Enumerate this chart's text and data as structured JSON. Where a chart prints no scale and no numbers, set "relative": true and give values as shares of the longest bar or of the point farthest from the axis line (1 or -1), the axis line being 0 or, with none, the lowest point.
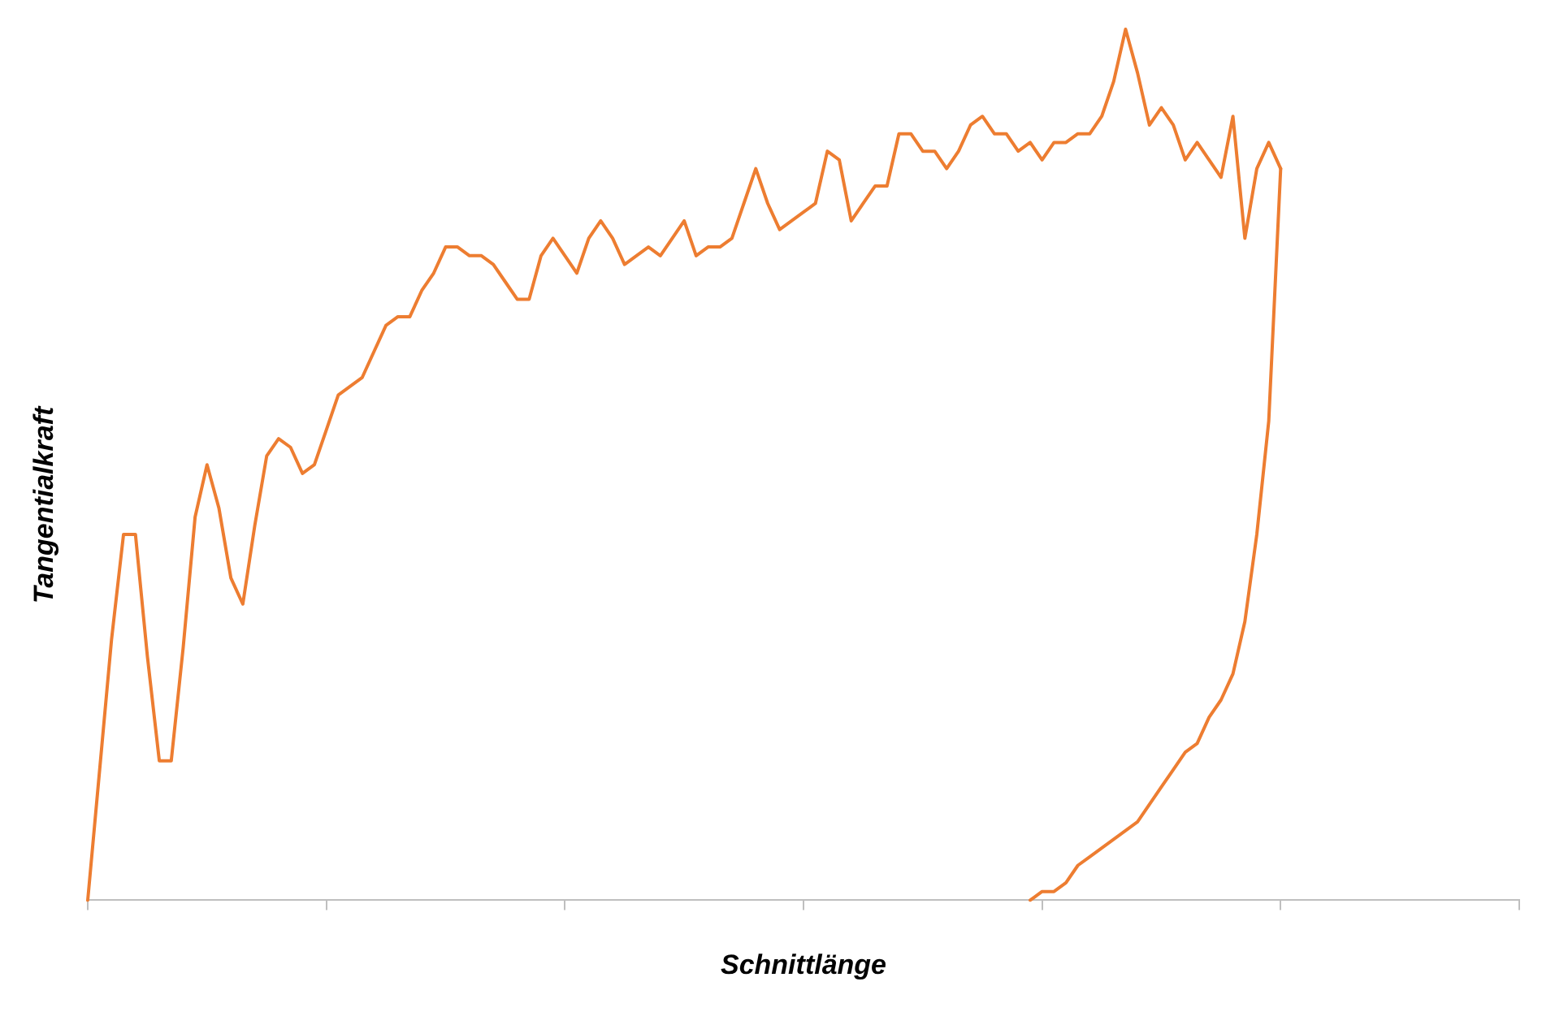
{
  "chart_data": {
    "type": "line",
    "xlabel": "Schnittlänge",
    "ylabel": "Tangentialkraft",
    "relative": true,
    "grid": false,
    "legend": false,
    "marker": "none",
    "line_style": "solid",
    "categories": [
      null,
      null,
      null,
      null,
      null,
      null,
      null,
      null,
      null,
      null,
      null,
      null,
      null,
      null,
      null,
      null,
      null,
      null,
      null,
      null,
      null,
      null,
      null,
      null,
      null,
      null,
      null,
      null,
      null,
      null,
      null,
      null,
      null,
      null,
      null,
      null,
      null,
      null,
      null,
      null,
      null,
      null,
      null,
      null,
      null,
      null,
      null,
      null,
      null,
      null,
      null,
      null,
      null,
      null,
      null,
      null,
      null,
      null,
      null,
      null,
      null,
      null,
      null,
      null,
      null,
      null,
      null,
      null,
      null,
      null,
      null,
      null,
      null,
      null,
      null,
      null,
      null,
      null,
      null,
      null,
      null,
      null,
      null,
      null,
      null,
      null,
      null,
      null,
      null,
      null,
      null,
      null,
      null,
      null,
      null,
      null,
      null,
      null,
      null,
      null,
      null,
      null,
      null,
      null,
      null,
      null,
      null,
      null,
      null,
      null,
      null,
      null,
      null,
      null,
      null,
      null,
      null,
      null,
      null,
      null,
      null
    ],
    "series": [
      {
        "color": "#ed7d31",
        "values": [
          0,
          0.15,
          0.3,
          0.42,
          0.42,
          0.28,
          0.16,
          0.16,
          0.29,
          0.44,
          0.5,
          0.45,
          0.37,
          0.34,
          0.43,
          0.51,
          0.53,
          0.52,
          0.49,
          0.5,
          0.54,
          0.58,
          0.59,
          0.6,
          0.63,
          0.66,
          0.67,
          0.67,
          0.7,
          0.72,
          0.75,
          0.75,
          0.74,
          0.74,
          0.73,
          0.71,
          0.69,
          0.69,
          0.74,
          0.76,
          0.74,
          0.72,
          0.76,
          0.78,
          0.76,
          0.73,
          0.74,
          0.75,
          0.74,
          0.76,
          0.78,
          0.74,
          0.75,
          0.75,
          0.76,
          0.8,
          0.84,
          0.8,
          0.77,
          0.78,
          0.79,
          0.8,
          0.86,
          0.85,
          0.78,
          0.8,
          0.82,
          0.82,
          0.88,
          0.88,
          0.86,
          0.86,
          0.84,
          0.86,
          0.89,
          0.9,
          0.88,
          0.88,
          0.86,
          0.87,
          0.85,
          0.87,
          0.87,
          0.88,
          0.88,
          0.9,
          0.94,
          1,
          0.95,
          0.89,
          0.91,
          0.89,
          0.85,
          0.87,
          0.85,
          0.83,
          0.9,
          0.76,
          0.84,
          0.87,
          0.84,
          null,
          null,
          null,
          null,
          null,
          null,
          null,
          null,
          null,
          null,
          null,
          null,
          null,
          null,
          null,
          null,
          null,
          null,
          null,
          null
        ]
      },
      {
        "color": "#ed7d31",
        "values": [
          null,
          null,
          null,
          null,
          null,
          null,
          null,
          null,
          null,
          null,
          null,
          null,
          null,
          null,
          null,
          null,
          null,
          null,
          null,
          null,
          null,
          null,
          null,
          null,
          null,
          null,
          null,
          null,
          null,
          null,
          null,
          null,
          null,
          null,
          null,
          null,
          null,
          null,
          null,
          null,
          null,
          null,
          null,
          null,
          null,
          null,
          null,
          null,
          null,
          null,
          null,
          null,
          null,
          null,
          null,
          null,
          null,
          null,
          null,
          null,
          null,
          null,
          null,
          null,
          null,
          null,
          null,
          null,
          null,
          null,
          null,
          null,
          null,
          null,
          null,
          null,
          null,
          null,
          null,
          0,
          0.01,
          0.01,
          0.02,
          0.04,
          0.05,
          0.06,
          0.07,
          0.08,
          0.09,
          0.11,
          0.13,
          0.15,
          0.17,
          0.18,
          0.21,
          0.23,
          0.26,
          0.32,
          0.42,
          0.55,
          0.84,
          null,
          null,
          null,
          null,
          null,
          null,
          null,
          null,
          null,
          null,
          null,
          null,
          null,
          null,
          null,
          null,
          null,
          null,
          null,
          null
        ]
      }
    ]
  }
}
